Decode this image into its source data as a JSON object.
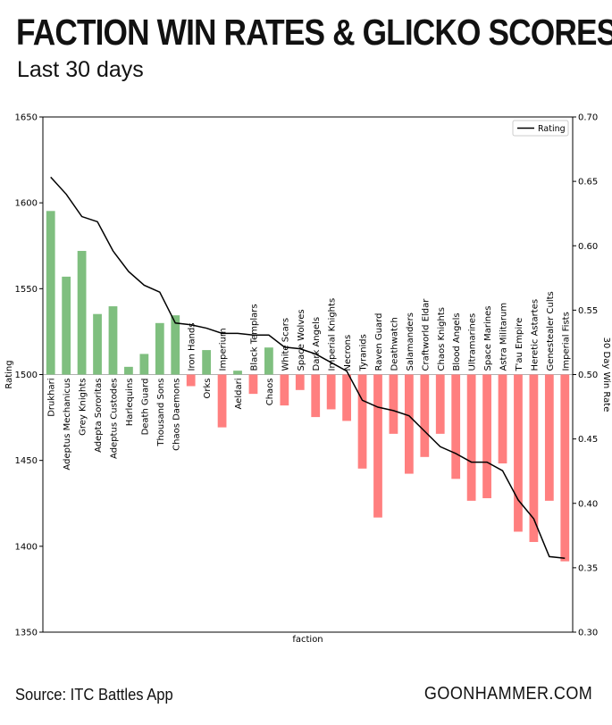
{
  "header": {
    "title": "FACTION WIN RATES & GLICKO SCORES",
    "subtitle": "Last 30 days"
  },
  "footer": {
    "source": "Source: ITC Battles App",
    "brand": "GOONHAMMER.COM"
  },
  "colors": {
    "positive": "#7fbf7f",
    "negative": "#ff7f7f",
    "line": "#000000"
  },
  "chart_data": {
    "type": "bar",
    "title": "",
    "xlabel": "faction",
    "ylabel": "Rating",
    "y2label": "30 Day Win Rate",
    "ylim": [
      1350,
      1650
    ],
    "y2lim": [
      0.3,
      0.7
    ],
    "yticks": [
      1350,
      1400,
      1450,
      1500,
      1550,
      1600,
      1650
    ],
    "y2ticks": [
      "0.30",
      "0.35",
      "0.40",
      "0.45",
      "0.50",
      "0.55",
      "0.60",
      "0.65",
      "0.70"
    ],
    "baseline": 1500,
    "legend": {
      "label": "Rating",
      "placement": "top-right"
    },
    "categories": [
      "Drukhari",
      "Adeptus Mechanicus",
      "Grey Knights",
      "Adepta Sororitas",
      "Adeptus Custodes",
      "Harlequins",
      "Death Guard",
      "Thousand Sons",
      "Chaos Daemons",
      "Iron Hands",
      "Orks",
      "Imperium",
      "Aeldari",
      "Black Templars",
      "Chaos",
      "White Scars",
      "Space Wolves",
      "Dark Angels",
      "Imperial Knights",
      "Necrons",
      "Tyranids",
      "Raven Guard",
      "Deathwatch",
      "Salamanders",
      "Craftworld Eldar",
      "Chaos Knights",
      "Blood Angels",
      "Ultramarines",
      "Space Marines",
      "Astra Militarum",
      "T'au Empire",
      "Heretic Astartes",
      "Genestealer Cults",
      "Imperial Fists"
    ],
    "series": [
      {
        "name": "",
        "axis": "right",
        "values": [
          0.627,
          0.576,
          0.596,
          0.547,
          0.553,
          0.506,
          0.516,
          0.54,
          0.546,
          0.491,
          0.519,
          0.459,
          0.503,
          0.485,
          0.521,
          0.476,
          0.488,
          0.467,
          0.473,
          0.464,
          0.427,
          0.389,
          0.454,
          0.423,
          0.436,
          0.454,
          0.419,
          0.402,
          0.404,
          0.431,
          0.378,
          0.37,
          0.402,
          0.355
        ]
      },
      {
        "name": "Rating",
        "axis": "left",
        "values": [
          1615,
          1605,
          1592,
          1589,
          1572,
          1560,
          1552,
          1548,
          1530,
          1529,
          1527,
          1524,
          1524,
          1523,
          1523,
          1516,
          1515,
          1512,
          1507,
          1502,
          1485,
          1481,
          1479,
          1476,
          1467,
          1458,
          1454,
          1449,
          1449,
          1444,
          1427,
          1416,
          1394,
          1393
        ]
      }
    ]
  }
}
